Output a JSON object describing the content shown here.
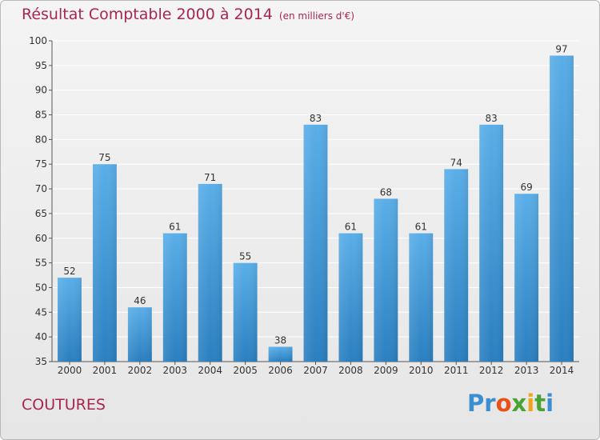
{
  "header": {
    "title": "Résultat Comptable 2000 à 2014",
    "unit": "(en milliers d'€)"
  },
  "footer": {
    "place": "COUTURES",
    "logo_text": "Proxiti"
  },
  "colors": {
    "bar_light": "#5aaee8",
    "bar_dark": "#2a7fc0",
    "title": "#a8264f",
    "grid": "#ffffff"
  },
  "chart_data": {
    "type": "bar",
    "title": "Résultat Comptable 2000 à 2014",
    "subtitle": "(en milliers d'€)",
    "xlabel": "",
    "ylabel": "",
    "categories": [
      "2000",
      "2001",
      "2002",
      "2003",
      "2004",
      "2005",
      "2006",
      "2007",
      "2008",
      "2009",
      "2010",
      "2011",
      "2012",
      "2013",
      "2014"
    ],
    "values": [
      52,
      75,
      46,
      61,
      71,
      55,
      38,
      83,
      61,
      68,
      61,
      74,
      83,
      69,
      97
    ],
    "ylim": [
      35,
      100
    ],
    "yticks": [
      35,
      40,
      45,
      50,
      55,
      60,
      65,
      70,
      75,
      80,
      85,
      90,
      95,
      100
    ],
    "grid": true,
    "legend": "none"
  }
}
